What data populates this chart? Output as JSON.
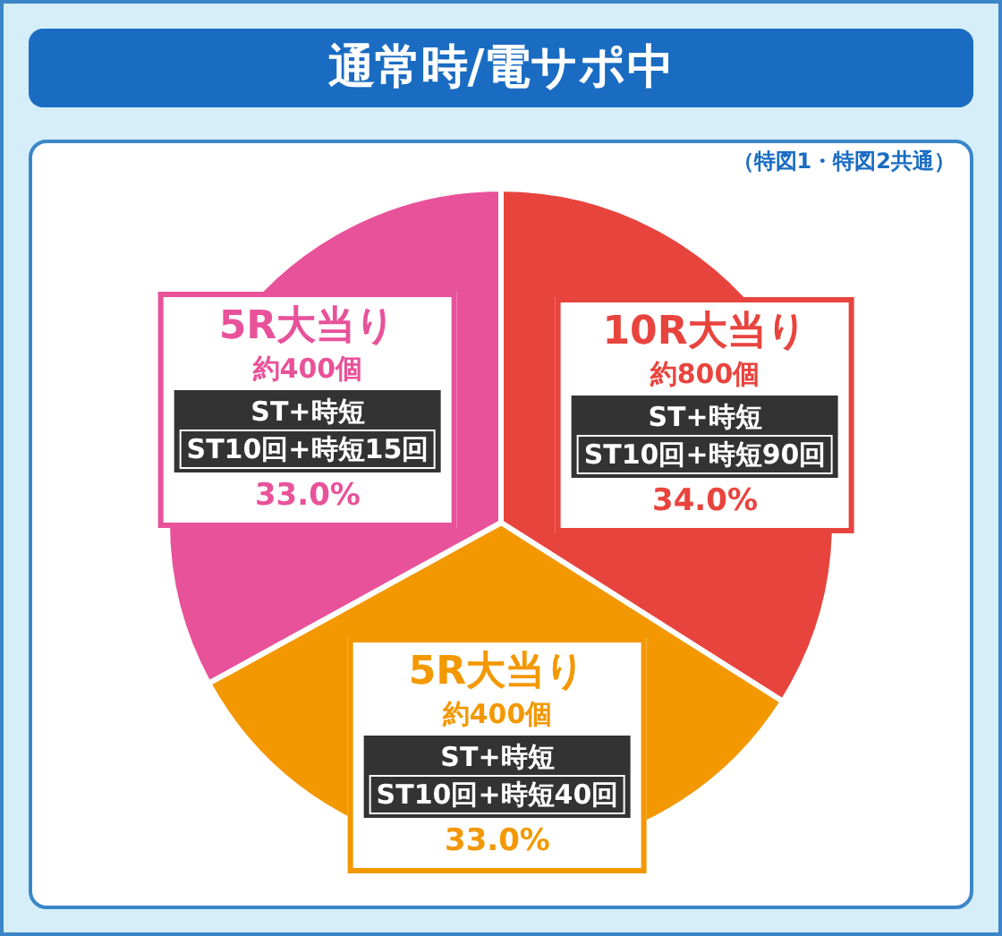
{
  "chart_data": {
    "type": "pie",
    "title": "通常時/電サポ中",
    "subtitle": "（特図1・特図2共通）",
    "categories": [
      "10R大当り",
      "5R大当り",
      "5R大当り"
    ],
    "values": [
      34.0,
      33.0,
      33.0
    ],
    "colors": [
      "#e8443e",
      "#f39800",
      "#e8529a"
    ],
    "value_labels": [
      "34.0%",
      "33.0%",
      "33.0%"
    ],
    "annotations": [
      "約800個",
      "ST+時短",
      "ST10回+時短90回",
      "約400個",
      "ST+時短",
      "ST10回+時短40回",
      "約400個",
      "ST+時短",
      "ST10回+時短15回"
    ],
    "legend": false
  }
}
